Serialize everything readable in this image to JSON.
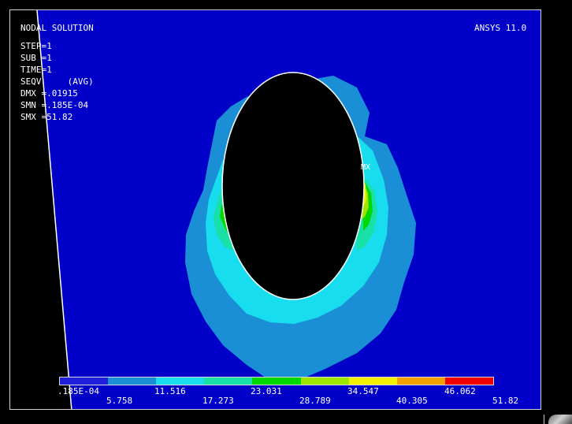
{
  "plot": {
    "title": "NODAL SOLUTION",
    "product": "ANSYS 11.0",
    "info_lines": [
      "STEP=1",
      "SUB =1",
      "TIME=1",
      "SEQV     (AVG)",
      "DMX =.01915",
      "SMN =.185E-04",
      "SMX =51.82"
    ],
    "mx_label": "MX"
  },
  "legend": {
    "colors": [
      "#1f1fd9",
      "#1b8fd6",
      "#17ddee",
      "#18e0a6",
      "#00d900",
      "#9ee600",
      "#f0f000",
      "#f0a000",
      "#f00000"
    ],
    "tick_values_top": [
      ".185E-04",
      "11.516",
      "23.031",
      "34.547",
      "46.062"
    ],
    "tick_values_bottom": [
      "5.758",
      "17.273",
      "28.789",
      "40.305",
      "51.82"
    ]
  },
  "colors": {
    "background_plate": "#0000c8",
    "hole": "#000000",
    "text": "#ffffff"
  }
}
